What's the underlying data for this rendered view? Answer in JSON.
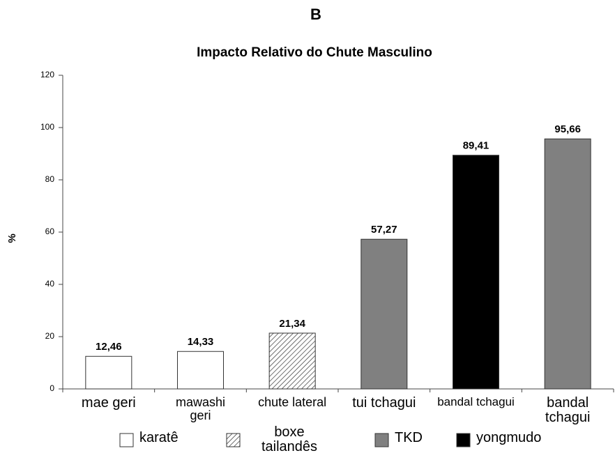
{
  "chart_data": {
    "type": "bar",
    "panel_label": "B",
    "title": "Impacto Relativo do Chute Masculino",
    "y_label": "%",
    "categories": [
      "mae geri",
      "mawashi geri",
      "chute lateral",
      "tui tchagui",
      "bandal tchagui",
      "bandal tchagui"
    ],
    "series": [
      {
        "name": "karatê",
        "color": "#ffffff",
        "values": [
          12.46,
          14.33,
          null,
          null,
          null,
          null
        ],
        "value_labels": [
          "12,46",
          "14,33",
          null,
          null,
          null,
          null
        ]
      },
      {
        "name": "boxe tailandês",
        "color": "#ffffff",
        "pattern": "hatch",
        "values": [
          null,
          null,
          21.34,
          null,
          null,
          null
        ],
        "value_labels": [
          null,
          null,
          "21,34",
          null,
          null,
          null
        ]
      },
      {
        "name": "TKD",
        "color": "#808080",
        "values": [
          null,
          null,
          null,
          57.27,
          null,
          95.66
        ],
        "value_labels": [
          null,
          null,
          null,
          "57,27",
          null,
          "95,66"
        ]
      },
      {
        "name": "yongmudo",
        "color": "#000000",
        "values": [
          null,
          null,
          null,
          null,
          89.41,
          null
        ],
        "value_labels": [
          null,
          null,
          null,
          null,
          "89,41",
          null
        ]
      }
    ],
    "ylim": [
      0,
      120
    ],
    "yticks": [
      0,
      20,
      40,
      60,
      80,
      100,
      120
    ],
    "grid": false
  }
}
